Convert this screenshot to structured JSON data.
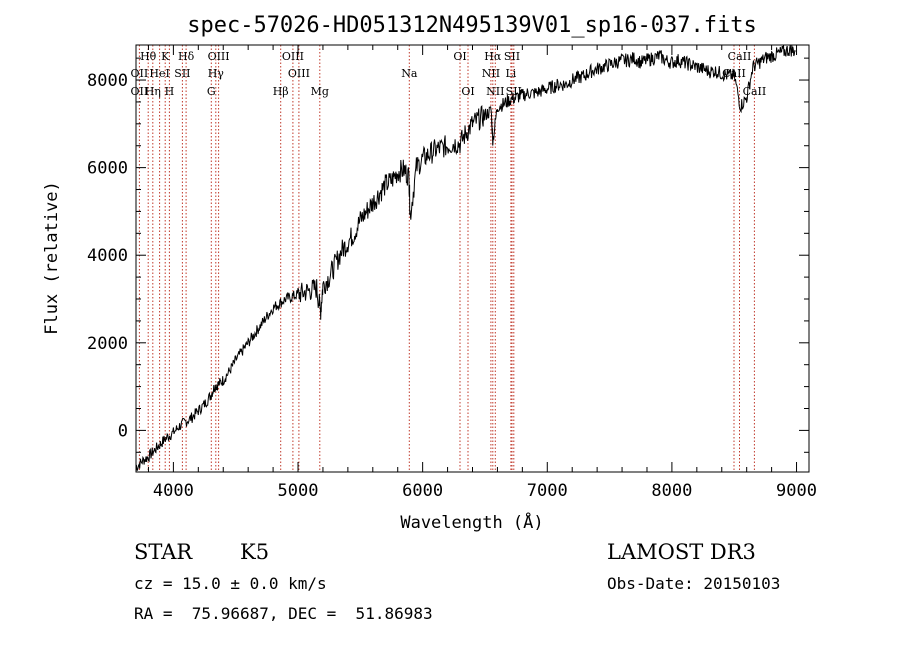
{
  "chart_data": {
    "type": "line",
    "title": "spec-57026-HD051312N495139V01_sp16-037.fits",
    "xlabel": "Wavelength (Å)",
    "ylabel": "Flux (relative)",
    "xlim": [
      3700,
      9100
    ],
    "ylim": [
      -950,
      8800
    ],
    "xticks": [
      4000,
      5000,
      6000,
      7000,
      8000,
      9000
    ],
    "yticks": [
      0,
      2000,
      4000,
      6000,
      8000
    ],
    "series": [
      {
        "name": "flux",
        "x": [
          3700,
          3750,
          3800,
          3850,
          3900,
          3950,
          4000,
          4050,
          4100,
          4150,
          4200,
          4250,
          4300,
          4330,
          4360,
          4400,
          4450,
          4500,
          4550,
          4600,
          4650,
          4700,
          4750,
          4800,
          4850,
          4900,
          4950,
          5000,
          5050,
          5100,
          5150,
          5180,
          5200,
          5250,
          5300,
          5350,
          5400,
          5450,
          5500,
          5550,
          5600,
          5650,
          5700,
          5750,
          5800,
          5850,
          5890,
          5900,
          5950,
          6000,
          6050,
          6100,
          6150,
          6200,
          6250,
          6300,
          6350,
          6400,
          6450,
          6500,
          6550,
          6563,
          6600,
          6650,
          6700,
          6750,
          6800,
          6850,
          6900,
          6950,
          7000,
          7050,
          7100,
          7150,
          7200,
          7250,
          7300,
          7350,
          7400,
          7450,
          7500,
          7550,
          7600,
          7650,
          7700,
          7750,
          7800,
          7850,
          7900,
          7950,
          8000,
          8050,
          8100,
          8150,
          8200,
          8250,
          8300,
          8350,
          8400,
          8450,
          8500,
          8550,
          8600,
          8650,
          8700,
          8750,
          8800,
          8850,
          8900,
          8950,
          8990
        ],
        "y": [
          -850,
          -700,
          -600,
          -450,
          -300,
          -150,
          -50,
          100,
          200,
          300,
          450,
          600,
          800,
          1000,
          1050,
          1150,
          1350,
          1600,
          1800,
          2000,
          2200,
          2400,
          2600,
          2800,
          2900,
          3000,
          3050,
          3100,
          3150,
          3200,
          3250,
          2700,
          3300,
          3500,
          3800,
          4100,
          4300,
          4500,
          4800,
          5000,
          5200,
          5400,
          5600,
          5700,
          5900,
          5950,
          5800,
          4900,
          6000,
          6200,
          6300,
          6400,
          6450,
          6500,
          6550,
          6550,
          6800,
          7000,
          7100,
          7200,
          7300,
          6600,
          7400,
          7450,
          7550,
          7600,
          7650,
          7700,
          7700,
          7750,
          7800,
          7850,
          7900,
          7900,
          8000,
          8050,
          8100,
          8200,
          8250,
          8300,
          8350,
          8400,
          8450,
          8450,
          8500,
          8400,
          8450,
          8500,
          8550,
          8450,
          8400,
          8450,
          8400,
          8350,
          8300,
          8250,
          8200,
          8200,
          8150,
          8100,
          8100,
          7400,
          7600,
          8300,
          8400,
          8500,
          8550,
          8600,
          8650,
          8700,
          8650
        ]
      }
    ],
    "line_labels": [
      {
        "label": "Hθ",
        "row": 0,
        "x": 3798
      },
      {
        "label": "K",
        "row": 0,
        "x": 3934
      },
      {
        "label": "Hδ",
        "row": 0,
        "x": 4102
      },
      {
        "label": "OIII",
        "row": 0,
        "x": 4363
      },
      {
        "label": "OIII",
        "row": 0,
        "x": 4959
      },
      {
        "label": "OI",
        "row": 0,
        "x": 6300
      },
      {
        "label": "Hα",
        "row": 0,
        "x": 6563
      },
      {
        "label": "SII",
        "row": 0,
        "x": 6717
      },
      {
        "label": "CaII",
        "row": 0,
        "x": 8542
      },
      {
        "label": "OII",
        "row": 1,
        "x": 3727
      },
      {
        "label": "HeI",
        "row": 1,
        "x": 3889
      },
      {
        "label": "SII",
        "row": 1,
        "x": 4072
      },
      {
        "label": "Hγ",
        "row": 1,
        "x": 4340
      },
      {
        "label": "OIII",
        "row": 1,
        "x": 5007
      },
      {
        "label": "Na",
        "row": 1,
        "x": 5893
      },
      {
        "label": "NII",
        "row": 1,
        "x": 6548
      },
      {
        "label": "Li",
        "row": 1,
        "x": 6708
      },
      {
        "label": "CaII",
        "row": 1,
        "x": 8498
      },
      {
        "label": "OII",
        "row": 2,
        "x": 3727
      },
      {
        "label": "Hη",
        "row": 2,
        "x": 3835
      },
      {
        "label": "H",
        "row": 2,
        "x": 3968
      },
      {
        "label": "G",
        "row": 2,
        "x": 4304
      },
      {
        "label": "Hβ",
        "row": 2,
        "x": 4861
      },
      {
        "label": "Mg",
        "row": 2,
        "x": 5175
      },
      {
        "label": "OI",
        "row": 2,
        "x": 6364
      },
      {
        "label": "NII",
        "row": 2,
        "x": 6583
      },
      {
        "label": "SII",
        "row": 2,
        "x": 6731
      },
      {
        "label": "CaII",
        "row": 2,
        "x": 8662
      }
    ],
    "line_markers": [
      3727,
      3798,
      3835,
      3889,
      3934,
      3968,
      4072,
      4102,
      4304,
      4340,
      4363,
      4861,
      4959,
      5007,
      5175,
      5893,
      6300,
      6364,
      6548,
      6563,
      6583,
      6708,
      6717,
      6731,
      8498,
      8542,
      8662
    ],
    "colors": {
      "line": "#000000",
      "marker": "#c0392b",
      "axes": "#000000"
    }
  },
  "info": {
    "object_type": "STAR",
    "subclass": "K5",
    "survey": "LAMOST DR3",
    "cz": "cz = 15.0 ± 0.0 km/s",
    "obs_date": "Obs-Date: 20150103",
    "coords": "RA =  75.96687, DEC =  51.86983"
  }
}
